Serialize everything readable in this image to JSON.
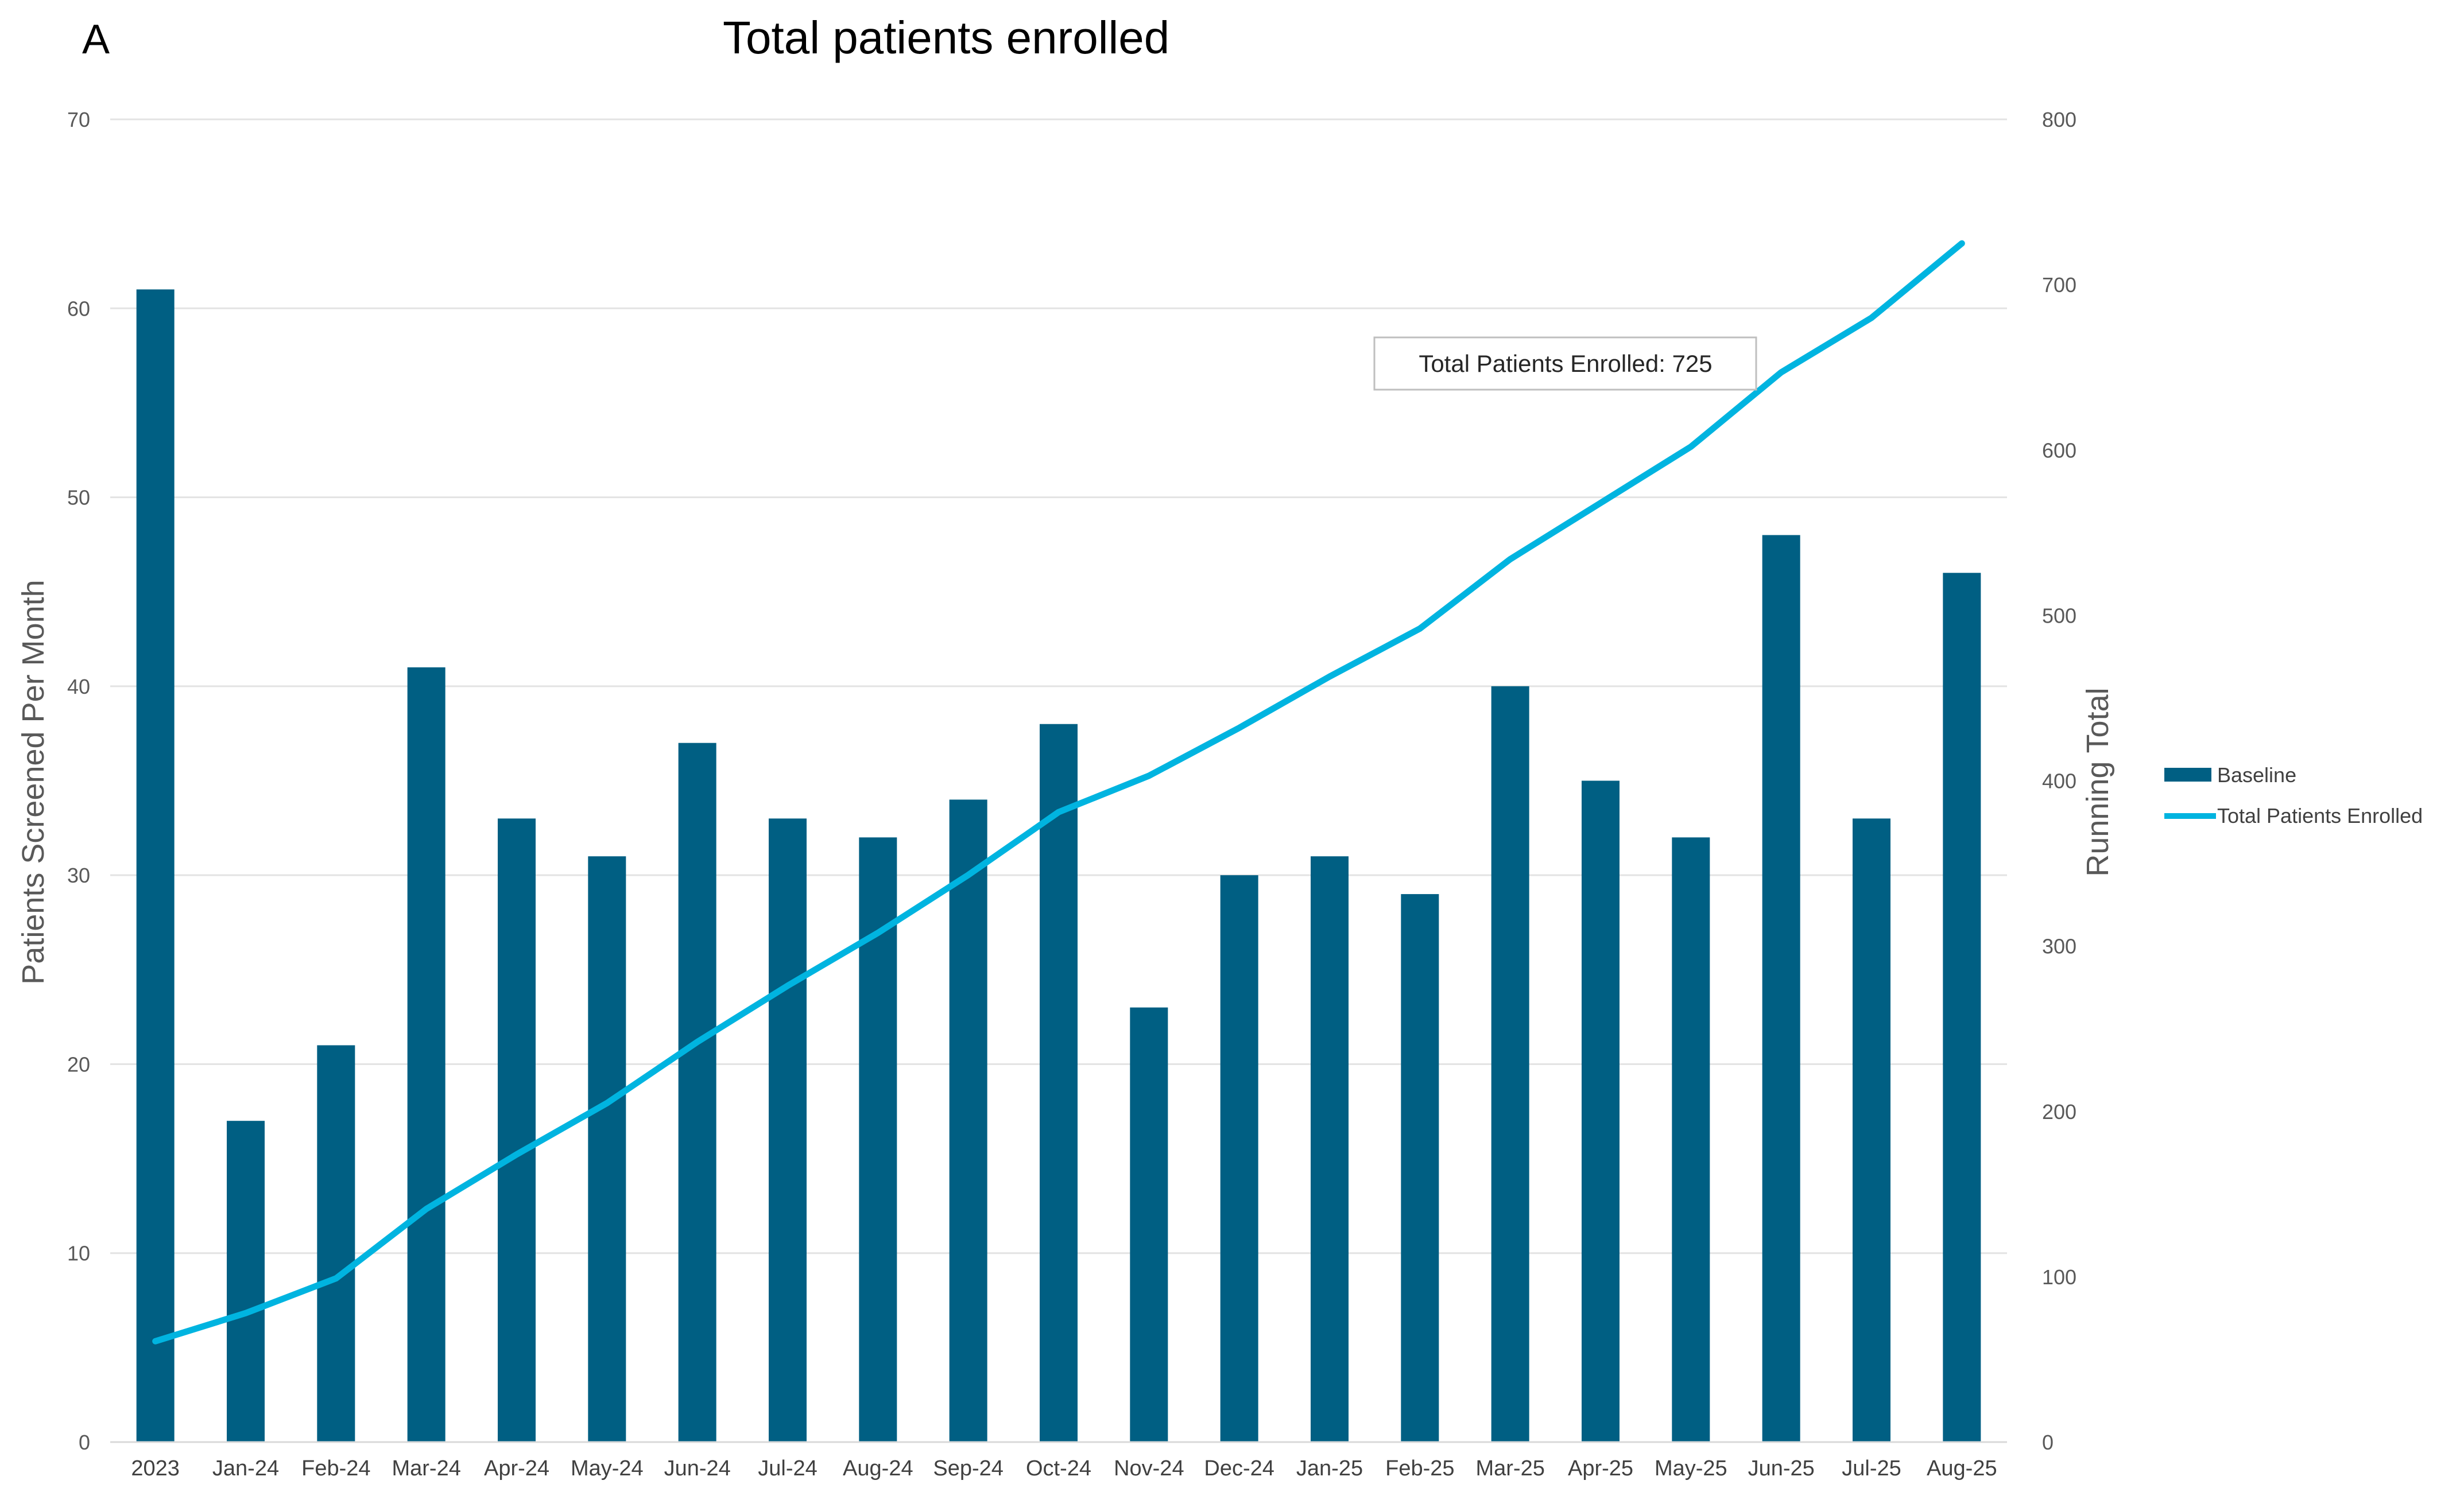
{
  "panel_label": "A",
  "chart_data": {
    "type": "bar",
    "title": "Total patients enrolled",
    "categories": [
      "2023",
      "Jan-24",
      "Feb-24",
      "Mar-24",
      "Apr-24",
      "May-24",
      "Jun-24",
      "Jul-24",
      "Aug-24",
      "Sep-24",
      "Oct-24",
      "Nov-24",
      "Dec-24",
      "Jan-25",
      "Feb-25",
      "Mar-25",
      "Apr-25",
      "May-25",
      "Jun-25",
      "Jul-25",
      "Aug-25"
    ],
    "series": [
      {
        "name": "Baseline",
        "type": "bar",
        "axis": "left",
        "color": "#005f83",
        "values": [
          61,
          17,
          21,
          41,
          33,
          31,
          37,
          33,
          32,
          34,
          38,
          23,
          30,
          31,
          29,
          40,
          35,
          32,
          48,
          33,
          46
        ]
      },
      {
        "name": "Total Patients Enrolled",
        "type": "line",
        "axis": "right",
        "color": "#00b4e0",
        "values": [
          61,
          78,
          99,
          141,
          174,
          205,
          242,
          276,
          308,
          343,
          381,
          403,
          432,
          463,
          492,
          534,
          568,
          602,
          647,
          680,
          725
        ]
      }
    ],
    "xlabel": "",
    "ylabel": "Patients Screened Per Month",
    "y2label": "Running Total",
    "ylim": [
      0,
      70
    ],
    "yticks": [
      "0",
      "10",
      "20",
      "30",
      "40",
      "50",
      "60",
      "70"
    ],
    "y2lim": [
      0,
      800
    ],
    "y2ticks": [
      "0",
      "100",
      "200",
      "300",
      "400",
      "500",
      "600",
      "700",
      "800"
    ],
    "grid": true,
    "legend_position": "right",
    "annotation": "Total Patients Enrolled: 725"
  }
}
